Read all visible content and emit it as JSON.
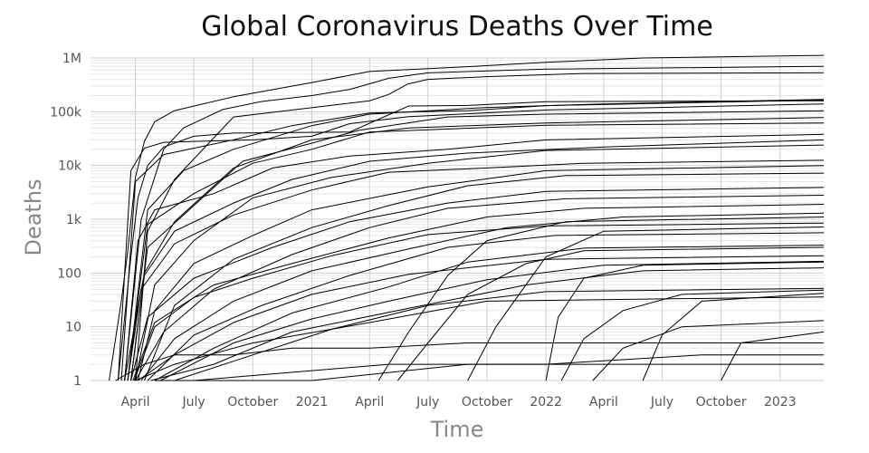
{
  "chart_data": {
    "type": "line",
    "title": "Global Coronavirus Deaths Over Time",
    "xlabel": "Time",
    "ylabel": "Deaths",
    "yscale": "log",
    "ylim": [
      1,
      1000000
    ],
    "xlim": [
      "2020-01-22",
      "2023-03-10"
    ],
    "grid": true,
    "legend": "none",
    "line_color": "#000000",
    "x_ticks": [
      {
        "date": "2020-04-01",
        "label": "April"
      },
      {
        "date": "2020-07-01",
        "label": "July"
      },
      {
        "date": "2020-10-01",
        "label": "October"
      },
      {
        "date": "2021-01-01",
        "label": "2021"
      },
      {
        "date": "2021-04-01",
        "label": "April"
      },
      {
        "date": "2021-07-01",
        "label": "July"
      },
      {
        "date": "2021-10-01",
        "label": "October"
      },
      {
        "date": "2022-01-01",
        "label": "2022"
      },
      {
        "date": "2022-04-01",
        "label": "April"
      },
      {
        "date": "2022-07-01",
        "label": "July"
      },
      {
        "date": "2022-10-01",
        "label": "October"
      },
      {
        "date": "2023-01-01",
        "label": "2023"
      }
    ],
    "y_ticks": [
      {
        "value": 1,
        "label": "1"
      },
      {
        "value": 10,
        "label": "10"
      },
      {
        "value": 100,
        "label": "100"
      },
      {
        "value": 1000,
        "label": "1k"
      },
      {
        "value": 10000,
        "label": "10k"
      },
      {
        "value": 100000,
        "label": "100k"
      },
      {
        "value": 1000000,
        "label": "1M"
      }
    ],
    "series": [
      {
        "x": [
          "2020-02-20",
          "2020-03-10",
          "2020-03-20",
          "2020-04-01",
          "2020-04-15",
          "2020-05-01",
          "2020-06-01",
          "2020-09-01",
          "2021-01-01",
          "2021-04-01",
          "2021-09-01",
          "2022-01-01",
          "2022-06-01",
          "2023-03-10"
        ],
        "y": [
          1,
          30,
          250,
          6000,
          28000,
          65000,
          105000,
          190000,
          350000,
          560000,
          690000,
          830000,
          1000000,
          1120000
        ]
      },
      {
        "x": [
          "2020-03-05",
          "2020-03-25",
          "2020-04-05",
          "2020-04-20",
          "2020-05-15",
          "2020-07-01",
          "2020-09-01",
          "2020-12-01",
          "2021-03-01",
          "2021-06-01",
          "2021-09-01",
          "2022-01-01",
          "2023-03-10"
        ],
        "y": [
          1,
          200,
          2500,
          10000,
          22000,
          35000,
          40000,
          41000,
          42000,
          128000,
          131000,
          154000,
          160000
        ]
      },
      {
        "x": [
          "2020-03-15",
          "2020-04-10",
          "2020-05-15",
          "2020-06-15",
          "2020-08-15",
          "2020-10-15",
          "2021-01-01",
          "2021-03-01",
          "2021-05-01",
          "2021-07-01",
          "2022-01-01",
          "2023-03-10"
        ],
        "y": [
          1,
          1000,
          20000,
          50000,
          110000,
          155000,
          200000,
          260000,
          420000,
          530000,
          620000,
          700000
        ]
      },
      {
        "x": [
          "2020-04-01",
          "2020-04-20",
          "2020-06-01",
          "2020-09-01",
          "2021-04-01",
          "2021-05-01",
          "2021-05-31",
          "2021-07-01",
          "2021-10-01",
          "2022-03-01",
          "2023-03-10"
        ],
        "y": [
          1,
          600,
          5500,
          80000,
          160000,
          210000,
          330000,
          400000,
          450000,
          515000,
          530800
        ]
      },
      {
        "x": [
          "2020-03-05",
          "2020-03-25",
          "2020-04-15",
          "2020-05-15",
          "2020-07-01",
          "2020-10-01",
          "2021-01-01",
          "2021-03-01",
          "2021-06-01",
          "2022-01-01",
          "2023-03-10"
        ],
        "y": [
          1,
          8000,
          21000,
          27000,
          28000,
          30000,
          35000,
          60000,
          81000,
          108000,
          140000
        ]
      },
      {
        "x": [
          "2020-03-20",
          "2020-04-20",
          "2020-06-15",
          "2020-09-01",
          "2021-01-01",
          "2021-04-01",
          "2021-10-01",
          "2022-04-01",
          "2023-03-10"
        ],
        "y": [
          1,
          1500,
          8000,
          20000,
          55000,
          90000,
          120000,
          140000,
          170000
        ]
      },
      {
        "x": [
          "2020-03-10",
          "2020-04-01",
          "2020-05-15",
          "2020-09-01",
          "2020-12-01",
          "2021-04-01",
          "2021-09-01",
          "2022-01-01",
          "2023-03-10"
        ],
        "y": [
          1,
          5000,
          16000,
          30000,
          55000,
          95000,
          105000,
          130000,
          165000
        ]
      },
      {
        "x": [
          "2020-03-25",
          "2020-04-20",
          "2020-06-15",
          "2020-09-15",
          "2021-01-01",
          "2021-03-15",
          "2021-08-01",
          "2022-01-01",
          "2023-03-10"
        ],
        "y": [
          1,
          300,
          1200,
          12000,
          26000,
          45000,
          80000,
          90000,
          104000
        ]
      },
      {
        "x": [
          "2020-03-15",
          "2020-04-15",
          "2020-06-01",
          "2020-09-01",
          "2021-01-01",
          "2021-06-01",
          "2022-01-01",
          "2023-03-10"
        ],
        "y": [
          1,
          100,
          900,
          9000,
          30000,
          50000,
          62000,
          78000
        ]
      },
      {
        "x": [
          "2020-03-20",
          "2020-04-20",
          "2020-07-01",
          "2020-10-01",
          "2021-01-01",
          "2021-04-01",
          "2022-01-01",
          "2023-03-10"
        ],
        "y": [
          1,
          800,
          3000,
          11000,
          20000,
          42000,
          56000,
          62000
        ]
      },
      {
        "x": [
          "2020-04-01",
          "2020-05-01",
          "2020-07-01",
          "2020-10-01",
          "2021-02-01",
          "2021-07-01",
          "2022-01-01",
          "2023-03-10"
        ],
        "y": [
          1,
          60,
          400,
          2500,
          6000,
          11000,
          19000,
          24000
        ]
      },
      {
        "x": [
          "2020-03-25",
          "2020-04-15",
          "2020-06-01",
          "2020-09-01",
          "2020-12-01",
          "2021-04-01",
          "2021-09-01",
          "2022-04-01",
          "2023-03-10"
        ],
        "y": [
          1,
          90,
          600,
          2000,
          5500,
          12000,
          17000,
          22000,
          30000
        ]
      },
      {
        "x": [
          "2020-03-15",
          "2020-04-05",
          "2020-05-01",
          "2020-08-01",
          "2020-11-01",
          "2021-03-01",
          "2021-08-01",
          "2022-01-01",
          "2023-03-10"
        ],
        "y": [
          1,
          400,
          1500,
          3000,
          9000,
          15000,
          20000,
          30000,
          38000
        ]
      },
      {
        "x": [
          "2020-04-05",
          "2020-05-01",
          "2020-07-01",
          "2020-10-01",
          "2021-01-01",
          "2021-07-01",
          "2022-01-01",
          "2023-03-10"
        ],
        "y": [
          1,
          20,
          150,
          500,
          1500,
          4000,
          8000,
          10000
        ]
      },
      {
        "x": [
          "2020-03-20",
          "2020-04-10",
          "2020-06-01",
          "2020-09-01",
          "2021-01-01",
          "2021-05-01",
          "2021-10-01",
          "2022-03-01",
          "2023-03-10"
        ],
        "y": [
          1,
          50,
          350,
          1200,
          3500,
          7500,
          9000,
          11000,
          12500
        ]
      },
      {
        "x": [
          "2020-04-15",
          "2020-06-01",
          "2020-09-01",
          "2021-01-01",
          "2021-05-01",
          "2021-09-01",
          "2022-02-01",
          "2023-03-10"
        ],
        "y": [
          1,
          25,
          180,
          700,
          1800,
          4200,
          6500,
          7200
        ]
      },
      {
        "x": [
          "2020-03-25",
          "2020-04-20",
          "2020-07-01",
          "2020-11-01",
          "2021-03-01",
          "2021-08-01",
          "2022-01-01",
          "2023-03-10"
        ],
        "y": [
          1,
          15,
          80,
          300,
          900,
          2000,
          3300,
          3900
        ]
      },
      {
        "x": [
          "2020-04-01",
          "2020-05-15",
          "2020-08-01",
          "2020-12-01",
          "2021-04-01",
          "2021-08-01",
          "2022-02-01",
          "2023-03-10"
        ],
        "y": [
          1,
          8,
          50,
          220,
          700,
          1600,
          2400,
          2800
        ]
      },
      {
        "x": [
          "2020-03-28",
          "2020-05-01",
          "2020-08-01",
          "2020-12-01",
          "2021-05-01",
          "2021-10-01",
          "2022-03-01",
          "2023-03-10"
        ],
        "y": [
          1,
          12,
          60,
          150,
          450,
          1100,
          1600,
          1900
        ]
      },
      {
        "x": [
          "2020-04-10",
          "2020-06-01",
          "2020-09-01",
          "2021-01-01",
          "2021-06-01",
          "2021-11-01",
          "2022-05-01",
          "2023-03-10"
        ],
        "y": [
          1,
          6,
          30,
          110,
          280,
          700,
          1100,
          1300
        ]
      },
      {
        "x": [
          "2020-03-30",
          "2020-05-01",
          "2020-07-01",
          "2020-10-01",
          "2021-02-01",
          "2021-07-01",
          "2022-01-01",
          "2023-03-10"
        ],
        "y": [
          1,
          10,
          35,
          80,
          210,
          520,
          750,
          850
        ]
      },
      {
        "x": [
          "2020-04-20",
          "2020-07-01",
          "2020-10-15",
          "2021-03-01",
          "2021-08-01",
          "2022-01-15",
          "2023-03-10"
        ],
        "y": [
          1,
          7,
          25,
          90,
          300,
          500,
          560
        ]
      },
      {
        "x": [
          "2020-05-01",
          "2020-08-01",
          "2020-12-01",
          "2021-05-01",
          "2021-09-01",
          "2022-03-01",
          "2023-03-10"
        ],
        "y": [
          1,
          4,
          18,
          55,
          160,
          290,
          330
        ]
      },
      {
        "x": [
          "2020-04-05",
          "2020-06-01",
          "2020-09-01",
          "2021-01-01",
          "2021-06-01",
          "2022-01-01",
          "2023-03-10"
        ],
        "y": [
          1,
          3,
          12,
          40,
          95,
          180,
          210
        ]
      },
      {
        "x": [
          "2020-05-10",
          "2020-09-01",
          "2021-01-01",
          "2021-05-01",
          "2021-10-01",
          "2022-04-01",
          "2023-03-10"
        ],
        "y": [
          1,
          5,
          14,
          30,
          75,
          140,
          165
        ]
      },
      {
        "x": [
          "2020-04-25",
          "2020-08-01",
          "2020-12-01",
          "2021-06-01",
          "2021-12-01",
          "2022-06-01",
          "2023-03-10"
        ],
        "y": [
          1,
          2,
          8,
          22,
          60,
          110,
          125
        ]
      },
      {
        "x": [
          "2020-06-01",
          "2020-10-01",
          "2021-02-01",
          "2021-07-01",
          "2022-01-01",
          "2023-03-10"
        ],
        "y": [
          1,
          3,
          9,
          25,
          45,
          52
        ]
      },
      {
        "x": [
          "2020-04-01",
          "2020-06-01",
          "2020-10-01",
          "2021-04-01",
          "2021-10-01",
          "2023-03-10"
        ],
        "y": [
          1,
          2,
          5,
          12,
          30,
          36
        ]
      },
      {
        "x": [
          "2021-04-15",
          "2021-06-01",
          "2021-08-01",
          "2021-10-01",
          "2022-02-01",
          "2023-03-10"
        ],
        "y": [
          1,
          8,
          90,
          400,
          900,
          1100
        ]
      },
      {
        "x": [
          "2021-05-15",
          "2021-07-01",
          "2021-09-01",
          "2021-12-01",
          "2022-03-01",
          "2023-03-10"
        ],
        "y": [
          1,
          5,
          40,
          150,
          260,
          300
        ]
      },
      {
        "x": [
          "2021-09-01",
          "2021-10-15",
          "2022-01-01",
          "2022-04-01",
          "2023-03-10"
        ],
        "y": [
          1,
          10,
          200,
          600,
          720
        ]
      },
      {
        "x": [
          "2022-01-01",
          "2022-01-20",
          "2022-03-01",
          "2022-06-01",
          "2023-03-10"
        ],
        "y": [
          1,
          15,
          80,
          140,
          160
        ]
      },
      {
        "x": [
          "2022-01-25",
          "2022-03-01",
          "2022-05-01",
          "2022-08-01",
          "2023-03-10"
        ],
        "y": [
          1,
          6,
          20,
          40,
          48
        ]
      },
      {
        "x": [
          "2022-06-01",
          "2022-07-01",
          "2022-09-01",
          "2023-03-10"
        ],
        "y": [
          1,
          7,
          30,
          42
        ]
      },
      {
        "x": [
          "2022-03-15",
          "2022-05-01",
          "2022-08-01",
          "2023-03-10"
        ],
        "y": [
          1,
          4,
          10,
          13
        ]
      },
      {
        "x": [
          "2022-10-01",
          "2022-11-01",
          "2023-03-10"
        ],
        "y": [
          1,
          5,
          8
        ]
      },
      {
        "x": [
          "2020-03-01",
          "2020-04-15",
          "2020-06-01",
          "2020-09-01",
          "2020-12-01",
          "2021-04-01",
          "2021-09-01",
          "2022-02-01",
          "2023-03-10"
        ],
        "y": [
          1,
          2,
          3,
          3,
          4,
          4,
          5,
          5,
          5
        ]
      },
      {
        "x": [
          "2020-05-01",
          "2021-01-01",
          "2021-09-01",
          "2022-06-01",
          "2023-03-10"
        ],
        "y": [
          1,
          1,
          2,
          2,
          2
        ]
      },
      {
        "x": [
          "2020-07-01",
          "2021-05-01",
          "2022-01-01",
          "2022-09-01",
          "2023-03-10"
        ],
        "y": [
          1,
          2,
          2,
          3,
          3
        ]
      }
    ]
  }
}
